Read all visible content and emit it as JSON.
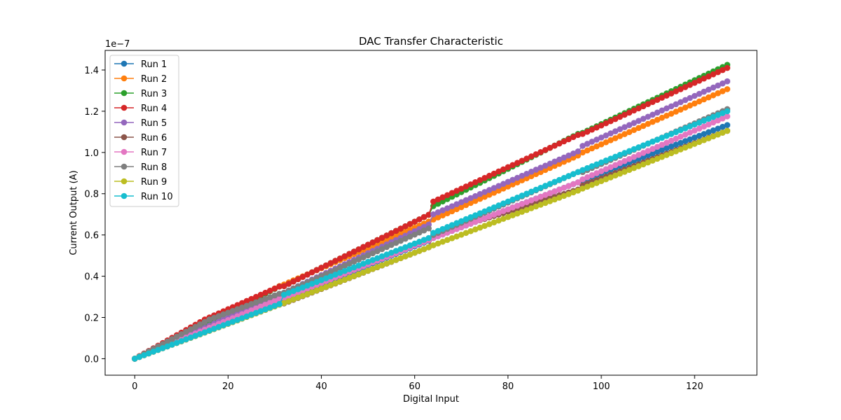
{
  "chart_data": {
    "type": "line",
    "title": "DAC Transfer Characteristic",
    "xlabel": "Digital Input",
    "ylabel": "Current Output (A)",
    "y_offset_label": "1e−7",
    "xlim": [
      -6.35,
      133.35
    ],
    "ylim": [
      -0.08,
      1.495
    ],
    "y_scale": "1e-7",
    "x_ticks": [
      0,
      20,
      40,
      60,
      80,
      100,
      120
    ],
    "y_ticks": [
      0.0,
      0.2,
      0.4,
      0.6,
      0.8,
      1.0,
      1.2,
      1.4
    ],
    "x_tick_labels": [
      "0",
      "20",
      "40",
      "60",
      "80",
      "100",
      "120"
    ],
    "y_tick_labels": [
      "0.0",
      "0.2",
      "0.4",
      "0.6",
      "0.8",
      "1.0",
      "1.2",
      "1.4"
    ],
    "legend_position": "upper-left",
    "grid": false,
    "marker": "circle",
    "x_range": [
      0,
      127
    ],
    "series": [
      {
        "name": "Run 1",
        "color": "#1f77b4",
        "anchors": [
          [
            0,
            0
          ],
          [
            32,
            0.29
          ],
          [
            63,
            0.572
          ],
          [
            64,
            0.585
          ],
          [
            95,
            0.855
          ],
          [
            96,
            0.865
          ],
          [
            127,
            1.133
          ]
        ]
      },
      {
        "name": "Run 2",
        "color": "#ff7f0e",
        "anchors": [
          [
            0,
            0
          ],
          [
            31,
            0.352
          ],
          [
            32,
            0.36
          ],
          [
            63,
            0.665
          ],
          [
            64,
            0.675
          ],
          [
            95,
            0.985
          ],
          [
            96,
            1.0
          ],
          [
            127,
            1.307
          ]
        ]
      },
      {
        "name": "Run 3",
        "color": "#2ca02c",
        "anchors": [
          [
            0,
            0
          ],
          [
            31,
            0.35
          ],
          [
            32,
            0.352
          ],
          [
            63,
            0.698
          ],
          [
            64,
            0.74
          ],
          [
            95,
            1.09
          ],
          [
            96,
            1.095
          ],
          [
            127,
            1.425
          ]
        ]
      },
      {
        "name": "Run 4",
        "color": "#d62728",
        "anchors": [
          [
            0,
            0
          ],
          [
            15,
            0.19
          ],
          [
            31,
            0.35
          ],
          [
            32,
            0.352
          ],
          [
            63,
            0.698
          ],
          [
            64,
            0.762
          ],
          [
            95,
            1.085
          ],
          [
            96,
            1.09
          ],
          [
            127,
            1.41
          ]
        ]
      },
      {
        "name": "Run 5",
        "color": "#9467bd",
        "anchors": [
          [
            0,
            0
          ],
          [
            31,
            0.31
          ],
          [
            32,
            0.32
          ],
          [
            63,
            0.65
          ],
          [
            64,
            0.7
          ],
          [
            95,
            1.005
          ],
          [
            96,
            1.032
          ],
          [
            127,
            1.345
          ]
        ]
      },
      {
        "name": "Run 6",
        "color": "#8c564b",
        "anchors": [
          [
            0,
            0
          ],
          [
            31,
            0.262
          ],
          [
            32,
            0.268
          ],
          [
            63,
            0.54
          ],
          [
            64,
            0.6
          ],
          [
            95,
            0.82
          ],
          [
            96,
            0.84
          ],
          [
            127,
            1.105
          ]
        ]
      },
      {
        "name": "Run 7",
        "color": "#e377c2",
        "anchors": [
          [
            0,
            0
          ],
          [
            31,
            0.29
          ],
          [
            32,
            0.295
          ],
          [
            63,
            0.575
          ],
          [
            64,
            0.585
          ],
          [
            95,
            0.855
          ],
          [
            96,
            0.87
          ],
          [
            127,
            1.175
          ]
        ]
      },
      {
        "name": "Run 8",
        "color": "#7f7f7f",
        "anchors": [
          [
            0,
            0
          ],
          [
            16,
            0.19
          ],
          [
            31,
            0.315
          ],
          [
            32,
            0.32
          ],
          [
            63,
            0.632
          ],
          [
            64,
            0.6
          ],
          [
            95,
            0.905
          ],
          [
            96,
            0.905
          ],
          [
            127,
            1.21
          ]
        ]
      },
      {
        "name": "Run 9",
        "color": "#bcbd22",
        "anchors": [
          [
            0,
            0
          ],
          [
            31,
            0.262
          ],
          [
            32,
            0.27
          ],
          [
            63,
            0.54
          ],
          [
            64,
            0.55
          ],
          [
            95,
            0.815
          ],
          [
            96,
            0.825
          ],
          [
            127,
            1.105
          ]
        ]
      },
      {
        "name": "Run 10",
        "color": "#17becf",
        "anchors": [
          [
            0,
            0
          ],
          [
            31,
            0.265
          ],
          [
            32,
            0.31
          ],
          [
            63,
            0.585
          ],
          [
            64,
            0.61
          ],
          [
            95,
            0.905
          ],
          [
            96,
            0.915
          ],
          [
            127,
            1.2
          ]
        ]
      }
    ]
  }
}
